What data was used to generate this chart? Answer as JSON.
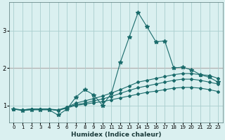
{
  "title": "",
  "xlabel": "Humidex (Indice chaleur)",
  "ylabel": "",
  "xlim": [
    -0.5,
    23.5
  ],
  "ylim": [
    0.55,
    3.75
  ],
  "yticks": [
    1,
    2,
    3
  ],
  "xticks": [
    0,
    1,
    2,
    3,
    4,
    5,
    6,
    7,
    8,
    9,
    10,
    11,
    12,
    13,
    14,
    15,
    16,
    17,
    18,
    19,
    20,
    21,
    22,
    23
  ],
  "bg_color": "#daf0f0",
  "grid_color": "#aacece",
  "line_color": "#1a6b6b",
  "red_line_color": "#cc3333",
  "red_line_y": 2.0,
  "series": [
    {
      "x": [
        0,
        1,
        2,
        3,
        4,
        5,
        6,
        7,
        8,
        9,
        10,
        11,
        12,
        13,
        14,
        15,
        16,
        17,
        18,
        19,
        20,
        21,
        22,
        23
      ],
      "y": [
        0.9,
        0.86,
        0.88,
        0.88,
        0.88,
        0.74,
        0.9,
        1.22,
        1.42,
        1.28,
        1.0,
        1.32,
        2.15,
        2.82,
        3.48,
        3.1,
        2.7,
        2.72,
        2.0,
        2.02,
        1.95,
        1.82,
        1.75,
        1.62
      ]
    },
    {
      "x": [
        0,
        1,
        2,
        3,
        4,
        5,
        6,
        7,
        8,
        9,
        10,
        11,
        12,
        13,
        14,
        15,
        16,
        17,
        18,
        19,
        20,
        21,
        22,
        23
      ],
      "y": [
        0.9,
        0.88,
        0.9,
        0.9,
        0.9,
        0.88,
        0.95,
        1.06,
        1.12,
        1.18,
        1.25,
        1.33,
        1.42,
        1.52,
        1.62,
        1.67,
        1.72,
        1.77,
        1.82,
        1.85,
        1.85,
        1.82,
        1.8,
        1.72
      ]
    },
    {
      "x": [
        0,
        1,
        2,
        3,
        4,
        5,
        6,
        7,
        8,
        9,
        10,
        11,
        12,
        13,
        14,
        15,
        16,
        17,
        18,
        19,
        20,
        21,
        22,
        23
      ],
      "y": [
        0.9,
        0.88,
        0.9,
        0.9,
        0.9,
        0.86,
        0.95,
        1.02,
        1.06,
        1.12,
        1.17,
        1.24,
        1.32,
        1.4,
        1.47,
        1.52,
        1.57,
        1.62,
        1.67,
        1.7,
        1.7,
        1.67,
        1.62,
        1.57
      ]
    },
    {
      "x": [
        0,
        1,
        2,
        3,
        4,
        5,
        6,
        7,
        8,
        9,
        10,
        11,
        12,
        13,
        14,
        15,
        16,
        17,
        18,
        19,
        20,
        21,
        22,
        23
      ],
      "y": [
        0.9,
        0.88,
        0.9,
        0.9,
        0.9,
        0.86,
        0.93,
        1.0,
        1.03,
        1.07,
        1.1,
        1.15,
        1.2,
        1.25,
        1.3,
        1.35,
        1.38,
        1.42,
        1.46,
        1.48,
        1.48,
        1.46,
        1.42,
        1.37
      ]
    }
  ]
}
